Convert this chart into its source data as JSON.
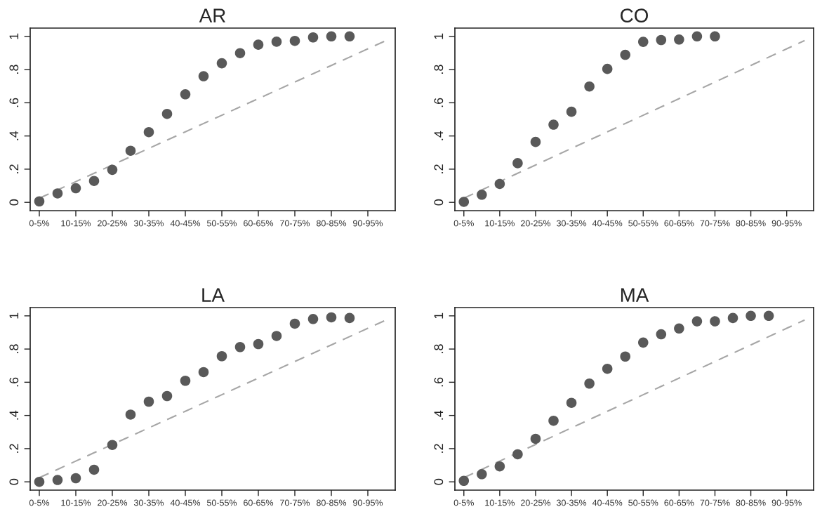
{
  "chart_data": [
    {
      "type": "scatter",
      "title": "AR",
      "categories": [
        "0-5%",
        null,
        "10-15%",
        null,
        "20-25%",
        null,
        "30-35%",
        null,
        "40-45%",
        null,
        "50-55%",
        null,
        "60-65%",
        null,
        "70-75%",
        null,
        "80-85%",
        null,
        "90-95%",
        null
      ],
      "ylim": [
        -0.05,
        1.05
      ],
      "yticks": [
        0,
        {
          "value": 0.2,
          "label": ".2"
        },
        {
          "value": 0.4,
          "label": ".4"
        },
        {
          "value": 0.6,
          "label": ".6"
        },
        {
          "value": 0.8,
          "label": ".8"
        },
        1
      ],
      "grid": false,
      "series": [
        {
          "marker": "circle",
          "color": "#595959",
          "values": [
            0.006,
            0.054,
            0.085,
            0.129,
            0.196,
            0.311,
            0.423,
            0.533,
            0.651,
            0.76,
            0.838,
            0.899,
            0.95,
            0.968,
            0.973,
            0.994,
            1.0,
            1.0,
            null,
            null
          ]
        },
        {
          "type": "line",
          "line_style": "dashed",
          "color": "#a6a6a6",
          "values": [
            0.025,
            0.075,
            0.125,
            0.175,
            0.225,
            0.275,
            0.325,
            0.375,
            0.425,
            0.475,
            0.525,
            0.575,
            0.625,
            0.675,
            0.725,
            0.775,
            0.825,
            0.875,
            0.925,
            0.975
          ]
        }
      ]
    },
    {
      "type": "scatter",
      "title": "CO",
      "categories": [
        "0-5%",
        null,
        "10-15%",
        null,
        "20-25%",
        null,
        "30-35%",
        null,
        "40-45%",
        null,
        "50-55%",
        null,
        "60-65%",
        null,
        "70-75%",
        null,
        "80-85%",
        null,
        "90-95%",
        null
      ],
      "ylim": [
        -0.05,
        1.05
      ],
      "yticks": [
        0,
        {
          "value": 0.2,
          "label": ".2"
        },
        {
          "value": 0.4,
          "label": ".4"
        },
        {
          "value": 0.6,
          "label": ".6"
        },
        {
          "value": 0.8,
          "label": ".8"
        },
        1
      ],
      "grid": false,
      "series": [
        {
          "marker": "circle",
          "color": "#595959",
          "values": [
            0.003,
            0.046,
            0.111,
            0.236,
            0.364,
            0.468,
            0.546,
            0.698,
            0.804,
            0.889,
            0.967,
            0.978,
            0.981,
            1.0,
            1.0,
            null,
            null,
            null,
            null,
            null
          ]
        },
        {
          "type": "line",
          "line_style": "dashed",
          "color": "#a6a6a6",
          "values": [
            0.025,
            0.075,
            0.125,
            0.175,
            0.225,
            0.275,
            0.325,
            0.375,
            0.425,
            0.475,
            0.525,
            0.575,
            0.625,
            0.675,
            0.725,
            0.775,
            0.825,
            0.875,
            0.925,
            0.975
          ]
        }
      ]
    },
    {
      "type": "scatter",
      "title": "LA",
      "categories": [
        "0-5%",
        null,
        "10-15%",
        null,
        "20-25%",
        null,
        "30-35%",
        null,
        "40-45%",
        null,
        "50-55%",
        null,
        "60-65%",
        null,
        "70-75%",
        null,
        "80-85%",
        null,
        "90-95%",
        null
      ],
      "ylim": [
        -0.05,
        1.05
      ],
      "yticks": [
        0,
        {
          "value": 0.2,
          "label": ".2"
        },
        {
          "value": 0.4,
          "label": ".4"
        },
        {
          "value": 0.6,
          "label": ".6"
        },
        {
          "value": 0.8,
          "label": ".8"
        },
        1
      ],
      "grid": false,
      "series": [
        {
          "marker": "circle",
          "color": "#595959",
          "values": [
            0.0,
            0.011,
            0.022,
            0.073,
            0.222,
            0.405,
            0.483,
            0.517,
            0.609,
            0.661,
            0.757,
            0.812,
            0.83,
            0.879,
            0.953,
            0.981,
            0.991,
            0.987,
            null,
            null
          ]
        },
        {
          "type": "line",
          "line_style": "dashed",
          "color": "#a6a6a6",
          "values": [
            0.025,
            0.075,
            0.125,
            0.175,
            0.225,
            0.275,
            0.325,
            0.375,
            0.425,
            0.475,
            0.525,
            0.575,
            0.625,
            0.675,
            0.725,
            0.775,
            0.825,
            0.875,
            0.925,
            0.975
          ]
        }
      ]
    },
    {
      "type": "scatter",
      "title": "MA",
      "categories": [
        "0-5%",
        null,
        "10-15%",
        null,
        "20-25%",
        null,
        "30-35%",
        null,
        "40-45%",
        null,
        "50-55%",
        null,
        "60-65%",
        null,
        "70-75%",
        null,
        "80-85%",
        null,
        "90-95%",
        null
      ],
      "ylim": [
        -0.05,
        1.05
      ],
      "yticks": [
        0,
        {
          "value": 0.2,
          "label": ".2"
        },
        {
          "value": 0.4,
          "label": ".4"
        },
        {
          "value": 0.6,
          "label": ".6"
        },
        {
          "value": 0.8,
          "label": ".8"
        },
        1
      ],
      "grid": false,
      "series": [
        {
          "marker": "circle",
          "color": "#595959",
          "values": [
            0.006,
            0.046,
            0.093,
            0.166,
            0.259,
            0.368,
            0.476,
            0.592,
            0.681,
            0.755,
            0.839,
            0.889,
            0.924,
            0.967,
            0.967,
            0.987,
            1.0,
            1.0,
            null,
            null
          ]
        },
        {
          "type": "line",
          "line_style": "dashed",
          "color": "#a6a6a6",
          "values": [
            0.025,
            0.075,
            0.125,
            0.175,
            0.225,
            0.275,
            0.325,
            0.375,
            0.425,
            0.475,
            0.525,
            0.575,
            0.625,
            0.675,
            0.725,
            0.775,
            0.825,
            0.875,
            0.925,
            0.975
          ]
        }
      ]
    }
  ]
}
